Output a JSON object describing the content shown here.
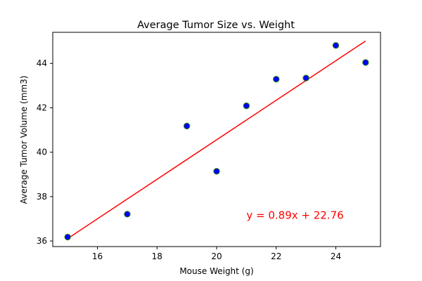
{
  "chart_data": {
    "type": "scatter",
    "title": "Average Tumor Size vs. Weight",
    "xlabel": "Mouse Weight (g)",
    "ylabel": "Average Tumor Volume (mm3)",
    "xlim": [
      14.5,
      25.5
    ],
    "ylim": [
      35.75,
      45.4
    ],
    "xticks": [
      16,
      18,
      20,
      22,
      24
    ],
    "yticks": [
      36,
      38,
      40,
      42,
      44
    ],
    "grid": false,
    "x": [
      15,
      17,
      19,
      20,
      21,
      22,
      23,
      24,
      25
    ],
    "y": [
      36.18,
      37.21,
      41.18,
      39.14,
      42.09,
      43.29,
      43.34,
      44.81,
      44.04
    ],
    "marker_fill": "#0000ff",
    "marker_edge": "#3a8a00",
    "regression": {
      "slope": 0.89,
      "intercept": 22.76,
      "color": "#ff0000",
      "x_range": [
        15,
        25
      ]
    },
    "annotation": {
      "text": "y = 0.89x + 22.76",
      "color": "#ff0000",
      "x": 21,
      "y": 37
    }
  }
}
